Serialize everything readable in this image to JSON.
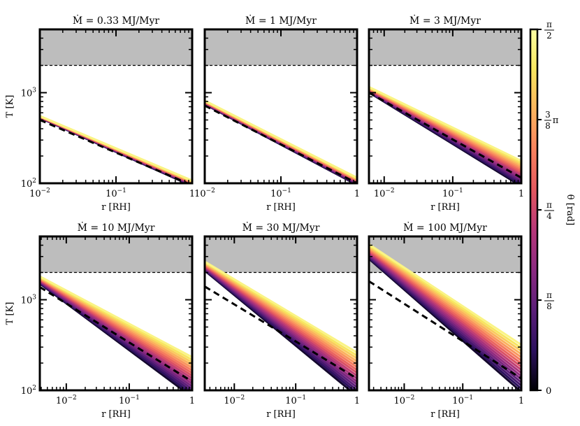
{
  "colorbar": {
    "label": "θ [rad]",
    "ticks": [
      {
        "label": "0",
        "value": 0
      },
      {
        "label": "π/8",
        "value": 0.125
      },
      {
        "label": "π/4",
        "value": 0.25
      },
      {
        "label": "3/8π",
        "value": 0.375
      },
      {
        "label": "π/2",
        "value": 0.5
      }
    ],
    "colors": [
      "#000004",
      "#2c115f",
      "#5b1e79",
      "#8b2981",
      "#b73779",
      "#e4585f",
      "#f8825e",
      "#fbb45e",
      "#f7e65f",
      "#fcffa4"
    ]
  },
  "chart_data": [
    {
      "type": "line",
      "title": "Ṁ = 0.33 MJ/Myr",
      "xlabel": "r [RH]",
      "ylabel": "T [K]",
      "xlim": [
        0.01,
        1
      ],
      "ylim": [
        100,
        5000
      ],
      "xscale": "log",
      "yscale": "log",
      "xticks": [
        {
          "v": 0.01,
          "label": "10^-2"
        },
        {
          "v": 0.1,
          "label": "10^-1"
        },
        {
          "v": 1,
          "label": "1"
        }
      ],
      "yticks": [
        {
          "v": 100,
          "label": "10^2"
        },
        {
          "v": 1000,
          "label": "10^3"
        }
      ],
      "shaded_above_T": 2000,
      "dashed_line": [
        [
          0.01,
          500
        ],
        [
          1,
          95
        ]
      ],
      "bundle": {
        "start": [
          0.01,
          540
        ],
        "end": [
          1,
          100
        ],
        "spread_start": 0.01,
        "spread_end": 0.03
      }
    },
    {
      "type": "line",
      "title": "Ṁ = 1 MJ/Myr",
      "xlabel": "r [RH]",
      "ylabel": "",
      "xlim": [
        0.01,
        1
      ],
      "ylim": [
        100,
        5000
      ],
      "xscale": "log",
      "yscale": "log",
      "xticks": [
        {
          "v": 0.01,
          "label": "10^-2"
        },
        {
          "v": 0.1,
          "label": "10^-1"
        },
        {
          "v": 1,
          "label": "1"
        }
      ],
      "yticks": [],
      "shaded_above_T": 2000,
      "dashed_line": [
        [
          0.01,
          720
        ],
        [
          1,
          100
        ]
      ],
      "bundle": {
        "start": [
          0.01,
          780
        ],
        "end": [
          1,
          105
        ],
        "spread_start": 0.02,
        "spread_end": 0.04
      }
    },
    {
      "type": "line",
      "title": "Ṁ = 3 MJ/Myr",
      "xlabel": "r [RH]",
      "ylabel": "",
      "xlim": [
        0.006,
        1
      ],
      "ylim": [
        100,
        5000
      ],
      "xscale": "log",
      "yscale": "log",
      "xticks": [
        {
          "v": 0.01,
          "label": "10^-2"
        },
        {
          "v": 0.1,
          "label": "10^-1"
        },
        {
          "v": 1,
          "label": "1"
        }
      ],
      "yticks": [],
      "shaded_above_T": 2000,
      "dashed_line": [
        [
          0.006,
          1000
        ],
        [
          1,
          115
        ]
      ],
      "bundle": {
        "start": [
          0.006,
          1080
        ],
        "end": [
          1,
          128
        ],
        "spread_start": 0.03,
        "spread_end": 0.14
      }
    },
    {
      "type": "line",
      "title": "Ṁ = 10 MJ/Myr",
      "xlabel": "r [RH]",
      "ylabel": "T [K]",
      "xlim": [
        0.0038,
        1
      ],
      "ylim": [
        100,
        5000
      ],
      "xscale": "log",
      "yscale": "log",
      "xticks": [
        {
          "v": 0.01,
          "label": "10^-2"
        },
        {
          "v": 0.1,
          "label": "10^-1"
        },
        {
          "v": 1,
          "label": "1"
        }
      ],
      "yticks": [
        {
          "v": 100,
          "label": "10^2"
        },
        {
          "v": 1000,
          "label": "10^3"
        }
      ],
      "shaded_above_T": 2000,
      "dashed_line": [
        [
          0.0038,
          1380
        ],
        [
          1,
          125
        ]
      ],
      "bundle": {
        "start": [
          0.0038,
          1650
        ],
        "end": [
          1,
          140
        ],
        "spread_start": 0.04,
        "spread_end": 0.22
      }
    },
    {
      "type": "line",
      "title": "Ṁ = 30 MJ/Myr",
      "xlabel": "r [RH]",
      "ylabel": "",
      "xlim": [
        0.0033,
        1
      ],
      "ylim": [
        100,
        5000
      ],
      "xscale": "log",
      "yscale": "log",
      "xticks": [
        {
          "v": 0.01,
          "label": "10^-2"
        },
        {
          "v": 0.1,
          "label": "10^-1"
        },
        {
          "v": 1,
          "label": "1"
        }
      ],
      "yticks": [],
      "shaded_above_T": 2000,
      "dashed_line": [
        [
          0.0033,
          1400
        ],
        [
          1,
          135
        ]
      ],
      "bundle": {
        "start": [
          0.0033,
          2350
        ],
        "end": [
          1,
          150
        ],
        "spread_start": 0.05,
        "spread_end": 0.24
      }
    },
    {
      "type": "line",
      "title": "Ṁ = 100 MJ/Myr",
      "xlabel": "r [RH]",
      "ylabel": "",
      "xlim": [
        0.0025,
        1
      ],
      "ylim": [
        100,
        5000
      ],
      "xscale": "log",
      "yscale": "log",
      "xticks": [
        {
          "v": 0.01,
          "label": "10^-2"
        },
        {
          "v": 0.1,
          "label": "10^-1"
        },
        {
          "v": 1,
          "label": "1"
        }
      ],
      "yticks": [],
      "shaded_above_T": 2000,
      "dashed_line": [
        [
          0.0025,
          1600
        ],
        [
          1,
          135
        ]
      ],
      "bundle": {
        "start": [
          0.0025,
          3400
        ],
        "end": [
          1,
          175
        ],
        "spread_start": 0.08,
        "spread_end": 0.26
      }
    }
  ]
}
